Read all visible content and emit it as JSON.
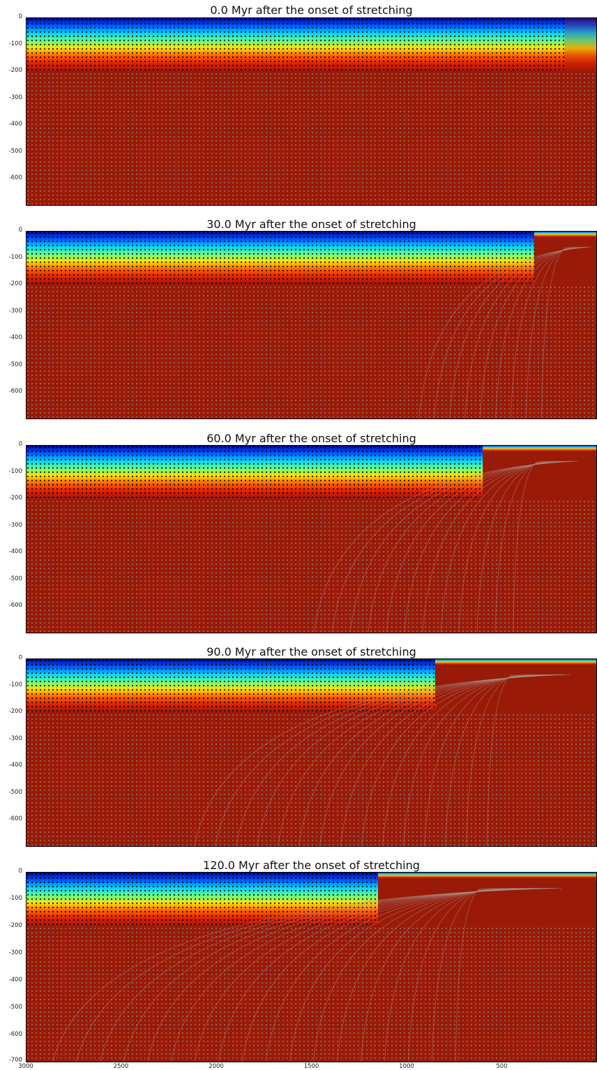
{
  "chart_data": {
    "type": "heatmap",
    "description_panels": 5,
    "x_ticks": [
      "3000",
      "2500",
      "2000",
      "1500",
      "1000",
      "500"
    ],
    "xlim": [
      3000,
      0
    ],
    "y_ticks": [
      "0",
      "-100",
      "-200",
      "-300",
      "-400",
      "-500",
      "-600"
    ],
    "bottom_y_tick": "-700",
    "ylim": [
      -700,
      0
    ],
    "colormap": [
      "#00008f",
      "#0050ff",
      "#00d0ff",
      "#60ff90",
      "#ffe000",
      "#ff6000",
      "#e02000",
      "#9a1a08"
    ],
    "background_color": "#9a1a08",
    "panels": [
      {
        "title": "0.0 Myr after the onset of stretching",
        "time_myr": 0,
        "rift_x": 170
      },
      {
        "title": "30.0 Myr after the onset of stretching",
        "time_myr": 30,
        "rift_x": 330
      },
      {
        "title": "60.0 Myr after the onset of stretching",
        "time_myr": 60,
        "rift_x": 600
      },
      {
        "title": "90.0 Myr after the onset of stretching",
        "time_myr": 90,
        "rift_x": 850
      },
      {
        "title": "120.0 Myr after the onset of stretching",
        "time_myr": 120,
        "rift_x": 1150
      }
    ],
    "lithosphere_base_depth": -200
  }
}
